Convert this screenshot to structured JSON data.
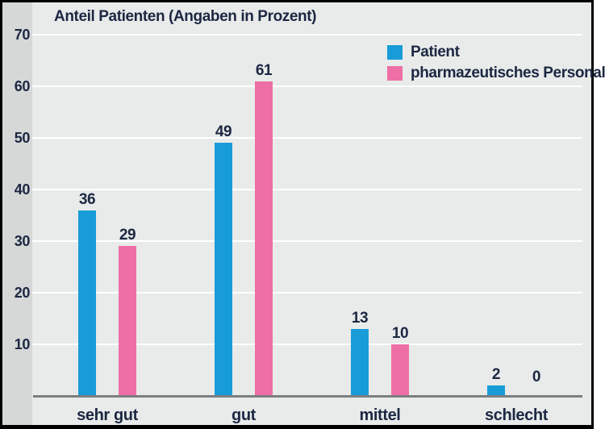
{
  "title": "Anteil Patienten (Angaben in Prozent)",
  "colors": {
    "patient_blue": "#189cd8",
    "personal_pink": "#ee6fa5",
    "plot_background": "#e8ebea",
    "axis_strip_background": "#d5d8d7",
    "gridline": "#ffffff",
    "baseline": "#7b7f7f",
    "text": "#1c2742"
  },
  "chart_data": {
    "type": "bar",
    "title": "Anteil Patienten (Angaben in Prozent)",
    "categories": [
      "sehr gut",
      "gut",
      "mittel",
      "schlecht"
    ],
    "series": [
      {
        "name": "Patient",
        "color": "#189cd8",
        "values": [
          36,
          49,
          13,
          2
        ]
      },
      {
        "name": "pharmazeutisches Personal",
        "color": "#ee6fa5",
        "values": [
          29,
          61,
          10,
          0
        ]
      }
    ],
    "xlabel": "",
    "ylabel": "",
    "ylim": [
      0,
      70
    ],
    "yticks": [
      10,
      20,
      30,
      40,
      50,
      60,
      70
    ],
    "grid": true,
    "value_labels": true,
    "legend_position": "top-right"
  }
}
